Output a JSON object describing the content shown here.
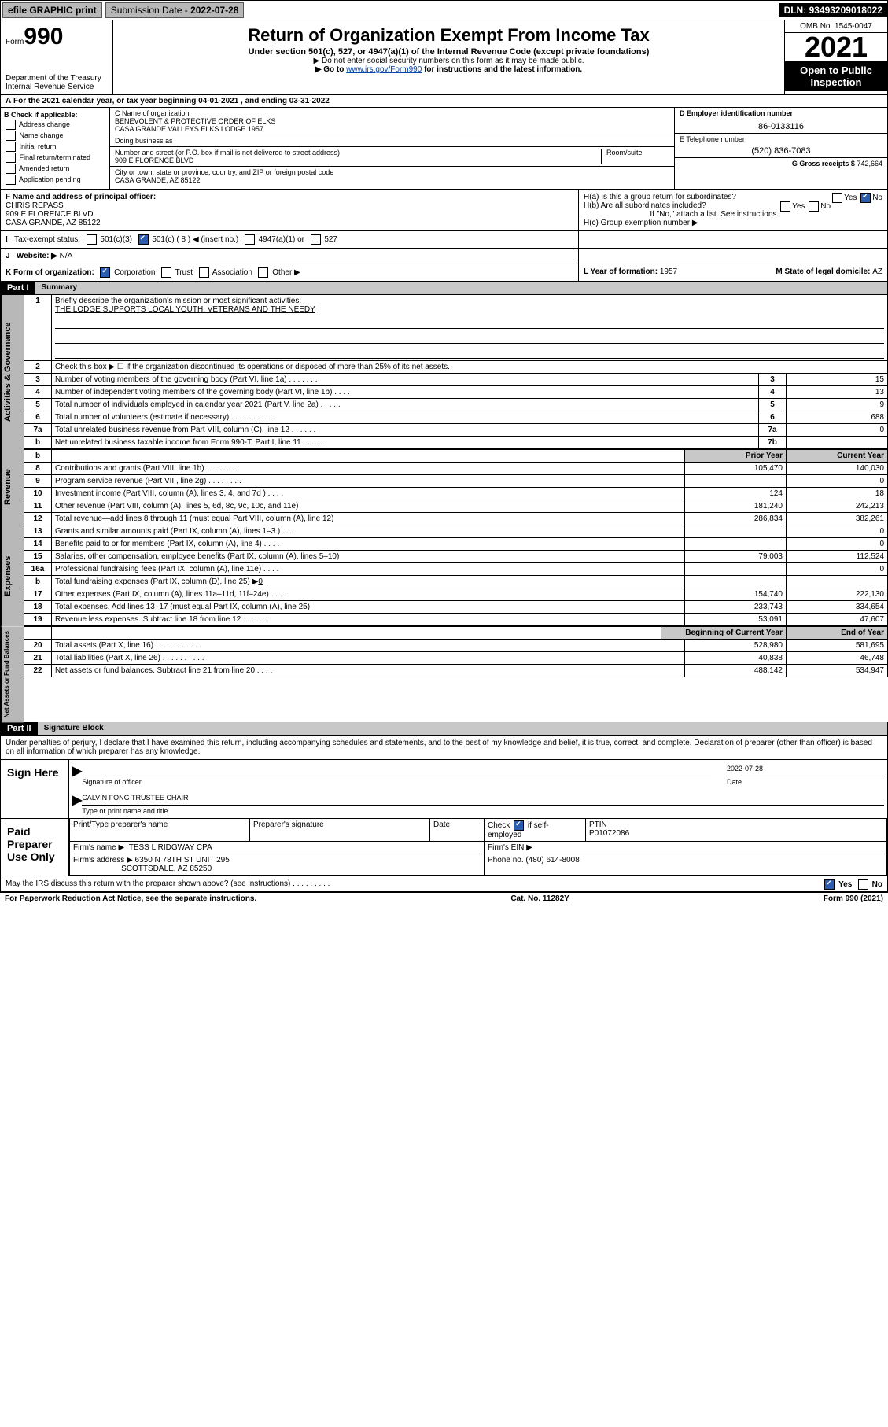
{
  "topbar": {
    "efile": "efile GRAPHIC print",
    "subdate_lbl": "Submission Date - ",
    "subdate": "2022-07-28",
    "dln_lbl": "DLN: ",
    "dln": "93493209018022"
  },
  "hdr": {
    "form_sm": "Form",
    "form": "990",
    "title": "Return of Organization Exempt From Income Tax",
    "sub1": "Under section 501(c), 527, or 4947(a)(1) of the Internal Revenue Code (except private foundations)",
    "sub2": "▶ Do not enter social security numbers on this form as it may be made public.",
    "sub3_a": "▶ Go to ",
    "sub3_link": "www.irs.gov/Form990",
    "sub3_b": " for instructions and the latest information.",
    "dept": "Department of the Treasury",
    "irs": "Internal Revenue Service",
    "omb": "OMB No. 1545-0047",
    "year": "2021",
    "otp": "Open to Public Inspection"
  },
  "A": {
    "text": "For the 2021 calendar year, or tax year beginning 04-01-2021 , and ending 03-31-2022"
  },
  "B": {
    "hdr": "B Check if applicable:",
    "items": [
      "Address change",
      "Name change",
      "Initial return",
      "Final return/terminated",
      "Amended return",
      "Application pending"
    ]
  },
  "C": {
    "name_lbl": "C Name of organization",
    "name": "BENEVOLENT & PROTECTIVE ORDER OF ELKS\nCASA GRANDE VALLEYS ELKS LODGE 1957",
    "dba_lbl": "Doing business as",
    "dba": "",
    "addr_lbl": "Number and street (or P.O. box if mail is not delivered to street address)",
    "room_lbl": "Room/suite",
    "addr": "909 E FLORENCE BLVD",
    "city_lbl": "City or town, state or province, country, and ZIP or foreign postal code",
    "city": "CASA GRANDE, AZ  85122"
  },
  "D": {
    "lbl": "D Employer identification number",
    "val": "86-0133116"
  },
  "E": {
    "lbl": "E Telephone number",
    "val": "(520) 836-7083"
  },
  "G": {
    "lbl": "G Gross receipts $",
    "val": "742,664"
  },
  "F": {
    "lbl": "F  Name and address of principal officer:",
    "name": "CHRIS REPASS",
    "addr1": "909 E FLORENCE BLVD",
    "addr2": "CASA GRANDE, AZ  85122"
  },
  "H": {
    "a": "H(a)  Is this a group return for subordinates?",
    "a_yes": "Yes",
    "a_no": "No",
    "b": "H(b)  Are all subordinates included?",
    "b_yes": "Yes",
    "b_no": "No",
    "b_note": "If \"No,\" attach a list. See instructions.",
    "c": "H(c)  Group exemption number ▶"
  },
  "I": {
    "lbl": "Tax-exempt status:",
    "c3": "501(c)(3)",
    "c": "501(c) ( 8 ) ◀ (insert no.)",
    "a1": "4947(a)(1) or",
    "s527": "527"
  },
  "J": {
    "lbl": "Website: ▶",
    "val": "N/A"
  },
  "K": {
    "lbl": "K Form of organization:",
    "corp": "Corporation",
    "trust": "Trust",
    "assoc": "Association",
    "other": "Other ▶"
  },
  "L": {
    "lbl": "L Year of formation: ",
    "val": "1957"
  },
  "M": {
    "lbl": "M State of legal domicile: ",
    "val": "AZ"
  },
  "part1": {
    "hdr": "Part I",
    "title": "Summary"
  },
  "summary": {
    "l1": "Briefly describe the organization's mission or most significant activities:",
    "mission": "THE LODGE SUPPORTS LOCAL YOUTH, VETERANS AND THE NEEDY",
    "l2": "Check this box ▶ ☐ if the organization discontinued its operations or disposed of more than 25% of its net assets.",
    "rows_a": [
      {
        "n": "3",
        "t": "Number of voting members of the governing body (Part VI, line 1a)  .    .    .    .    .    .    .",
        "c": "3",
        "v": "15"
      },
      {
        "n": "4",
        "t": "Number of independent voting members of the governing body (Part VI, line 1b)   .    .    .    .",
        "c": "4",
        "v": "13"
      },
      {
        "n": "5",
        "t": "Total number of individuals employed in calendar year 2021 (Part V, line 2a)   .    .    .    .    .",
        "c": "5",
        "v": "9"
      },
      {
        "n": "6",
        "t": "Total number of volunteers (estimate if necessary)    .    .    .    .    .    .    .    .    .    .",
        "c": "6",
        "v": "688"
      },
      {
        "n": "7a",
        "t": "Total unrelated business revenue from Part VIII, column (C), line 12   .    .    .    .    .    .",
        "c": "7a",
        "v": "0"
      },
      {
        "n": "b",
        "t": "Net unrelated business taxable income from Form 990-T, Part I, line 11   .    .    .    .    .    .",
        "c": "7b",
        "v": ""
      }
    ],
    "col_hdr": {
      "prior": "Prior Year",
      "curr": "Current Year"
    },
    "rows_rev": [
      {
        "n": "8",
        "t": "Contributions and grants (Part VIII, line 1h)  .    .    .    .    .    .    .    .",
        "p": "105,470",
        "c": "140,030"
      },
      {
        "n": "9",
        "t": "Program service revenue (Part VIII, line 2g)  .    .    .    .    .    .    .    .",
        "p": "",
        "c": "0"
      },
      {
        "n": "10",
        "t": "Investment income (Part VIII, column (A), lines 3, 4, and 7d )  .    .    .    .",
        "p": "124",
        "c": "18"
      },
      {
        "n": "11",
        "t": "Other revenue (Part VIII, column (A), lines 5, 6d, 8c, 9c, 10c, and 11e)",
        "p": "181,240",
        "c": "242,213"
      },
      {
        "n": "12",
        "t": "Total revenue—add lines 8 through 11 (must equal Part VIII, column (A), line 12)",
        "p": "286,834",
        "c": "382,261"
      }
    ],
    "rows_exp": [
      {
        "n": "13",
        "t": "Grants and similar amounts paid (Part IX, column (A), lines 1–3 )  .    .    .",
        "p": "",
        "c": "0"
      },
      {
        "n": "14",
        "t": "Benefits paid to or for members (Part IX, column (A), line 4)  .    .    .    .",
        "p": "",
        "c": "0"
      },
      {
        "n": "15",
        "t": "Salaries, other compensation, employee benefits (Part IX, column (A), lines 5–10)",
        "p": "79,003",
        "c": "112,524"
      },
      {
        "n": "16a",
        "t": "Professional fundraising fees (Part IX, column (A), line 11e)  .    .    .    .",
        "p": "",
        "c": "0"
      },
      {
        "n": "b",
        "t": "Total fundraising expenses (Part IX, column (D), line 25) ▶<u>0</u>",
        "p": "",
        "c": ""
      },
      {
        "n": "17",
        "t": "Other expenses (Part IX, column (A), lines 11a–11d, 11f–24e)  .    .    .    .",
        "p": "154,740",
        "c": "222,130"
      },
      {
        "n": "18",
        "t": "Total expenses. Add lines 13–17 (must equal Part IX, column (A), line 25)",
        "p": "233,743",
        "c": "334,654"
      },
      {
        "n": "19",
        "t": "Revenue less expenses. Subtract line 18 from line 12  .    .    .    .    .    .",
        "p": "53,091",
        "c": "47,607"
      }
    ],
    "col_hdr2": {
      "prior": "Beginning of Current Year",
      "curr": "End of Year"
    },
    "rows_net": [
      {
        "n": "20",
        "t": "Total assets (Part X, line 16)  .    .    .    .    .    .    .    .    .    .    .",
        "p": "528,980",
        "c": "581,695"
      },
      {
        "n": "21",
        "t": "Total liabilities (Part X, line 26)  .    .    .    .    .    .    .    .    .    .",
        "p": "40,838",
        "c": "46,748"
      },
      {
        "n": "22",
        "t": "Net assets or fund balances. Subtract line 21 from line 20  .    .    .    .",
        "p": "488,142",
        "c": "534,947"
      }
    ],
    "vtabs": {
      "ag": "Activities & Governance",
      "rev": "Revenue",
      "exp": "Expenses",
      "net": "Net Assets or Fund Balances"
    }
  },
  "part2": {
    "hdr": "Part II",
    "title": "Signature Block",
    "decl": "Under penalties of perjury, I declare that I have examined this return, including accompanying schedules and statements, and to the best of my knowledge and belief, it is true, correct, and complete. Declaration of preparer (other than officer) is based on all information of which preparer has any knowledge."
  },
  "sign": {
    "here": "Sign Here",
    "off_lbl": "Signature of officer",
    "date_lbl": "Date",
    "date": "2022-07-28",
    "name": "CALVIN FONG  TRUSTEE CHAIR",
    "name_lbl": "Type or print name and title"
  },
  "paid": {
    "lbl": "Paid Preparer Use Only",
    "prep_lbl": "Print/Type preparer's name",
    "sig_lbl": "Preparer's signature",
    "date_lbl": "Date",
    "chk_lbl": "Check ",
    "chk_after": " if self-employed",
    "ptin_lbl": "PTIN",
    "ptin": "P01072086",
    "firm_lbl": "Firm's name   ▶",
    "firm": "TESS L RIDGWAY CPA",
    "ein_lbl": "Firm's EIN ▶",
    "addr_lbl": "Firm's address ▶",
    "addr1": "6350 N 78TH ST UNIT 295",
    "addr2": "SCOTTSDALE, AZ  85250",
    "phone_lbl": "Phone no. ",
    "phone": "(480) 614-8008",
    "discuss": "May the IRS discuss this return with the preparer shown above? (see instructions)  .    .    .    .    .    .    .    .    .",
    "yes": "Yes",
    "no": "No"
  },
  "foot": {
    "l": "For Paperwork Reduction Act Notice, see the separate instructions.",
    "m": "Cat. No. 11282Y",
    "r": "Form 990 (2021)"
  }
}
